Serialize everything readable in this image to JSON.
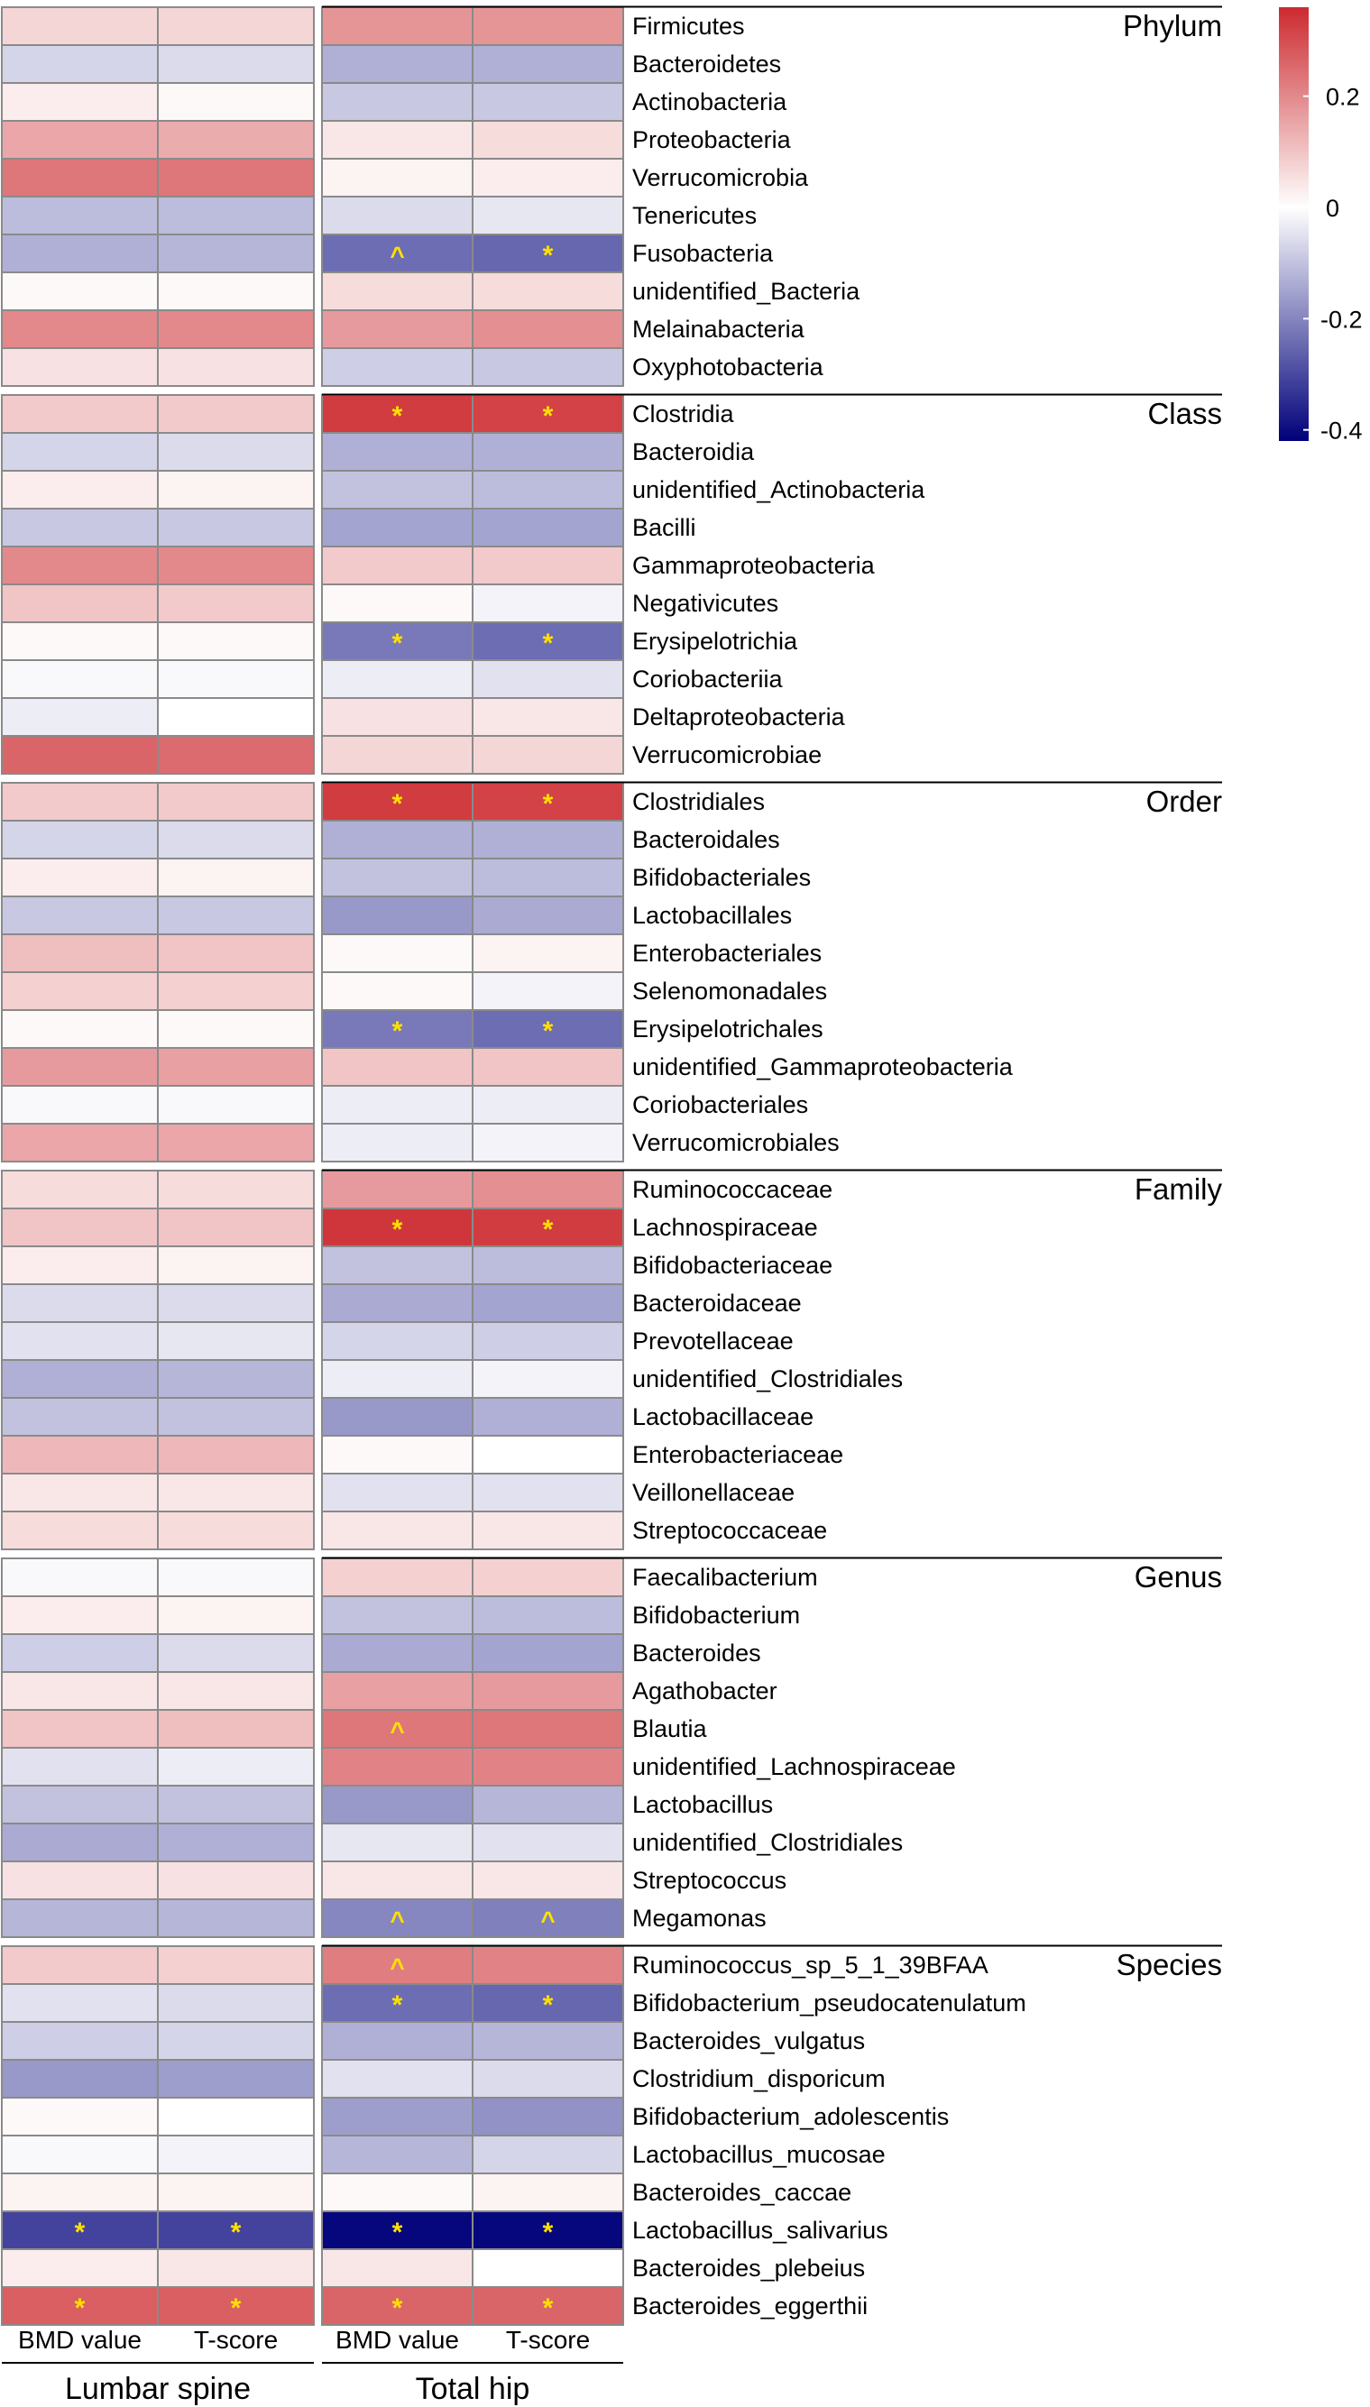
{
  "chart_data": {
    "type": "heatmap",
    "description_columns": [
      {
        "group": "Lumbar spine",
        "label": "BMD value"
      },
      {
        "group": "Lumbar spine",
        "label": "T-score"
      },
      {
        "group": "Total hip",
        "label": "BMD value"
      },
      {
        "group": "Total hip",
        "label": "T-score"
      }
    ],
    "column_labels": [
      "BMD value",
      "T-score",
      "BMD value",
      "T-score"
    ],
    "group_labels": [
      "Lumbar spine",
      "Total hip"
    ],
    "legend": {
      "ticks": [
        "0.2",
        "0",
        "-0.2",
        "-0.4"
      ],
      "tick_values": [
        0.2,
        0,
        -0.2,
        -0.4
      ],
      "range": [
        -0.42,
        0.36
      ],
      "low_color": "#00007a",
      "mid_color": "#ffffff",
      "high_color": "#cc2a2f"
    },
    "marker_color": "#ffe000",
    "sections": [
      {
        "level": "Phylum",
        "rows": [
          {
            "name": "Firmicutes",
            "values": [
              0.07,
              0.07,
              0.18,
              0.18
            ],
            "marks": [
              "",
              "",
              "",
              ""
            ]
          },
          {
            "name": "Bacteroidetes",
            "values": [
              -0.07,
              -0.06,
              -0.13,
              -0.13
            ],
            "marks": [
              "",
              "",
              "",
              ""
            ]
          },
          {
            "name": "Actinobacteria",
            "values": [
              0.03,
              0.01,
              -0.09,
              -0.09
            ],
            "marks": [
              "",
              "",
              "",
              ""
            ]
          },
          {
            "name": "Proteobacteria",
            "values": [
              0.15,
              0.14,
              0.04,
              0.06
            ],
            "marks": [
              "",
              "",
              "",
              ""
            ]
          },
          {
            "name": "Verrucomicrobia",
            "values": [
              0.23,
              0.23,
              0.02,
              0.03
            ],
            "marks": [
              "",
              "",
              "",
              ""
            ]
          },
          {
            "name": "Tenericutes",
            "values": [
              -0.11,
              -0.11,
              -0.06,
              -0.04
            ],
            "marks": [
              "",
              "",
              "",
              ""
            ]
          },
          {
            "name": "Fusobacteria",
            "values": [
              -0.13,
              -0.12,
              -0.24,
              -0.25
            ],
            "marks": [
              "",
              "",
              "^",
              "*"
            ]
          },
          {
            "name": "unidentified_Bacteria",
            "values": [
              0.01,
              0.01,
              0.06,
              0.06
            ],
            "marks": [
              "",
              "",
              "",
              ""
            ]
          },
          {
            "name": "Melainabacteria",
            "values": [
              0.2,
              0.2,
              0.17,
              0.19
            ],
            "marks": [
              "",
              "",
              "",
              ""
            ]
          },
          {
            "name": "Oxyphotobacteria",
            "values": [
              0.05,
              0.05,
              -0.08,
              -0.09
            ],
            "marks": [
              "",
              "",
              "",
              ""
            ]
          }
        ]
      },
      {
        "level": "Class",
        "rows": [
          {
            "name": "Clostridia",
            "values": [
              0.09,
              0.09,
              0.33,
              0.32
            ],
            "marks": [
              "",
              "",
              "*",
              "*"
            ]
          },
          {
            "name": "Bacteroidia",
            "values": [
              -0.07,
              -0.06,
              -0.13,
              -0.13
            ],
            "marks": [
              "",
              "",
              "",
              ""
            ]
          },
          {
            "name": "unidentified_Actinobacteria",
            "values": [
              0.03,
              0.02,
              -0.1,
              -0.11
            ],
            "marks": [
              "",
              "",
              "",
              ""
            ]
          },
          {
            "name": "Bacilli",
            "values": [
              -0.09,
              -0.09,
              -0.15,
              -0.15
            ],
            "marks": [
              "",
              "",
              "",
              ""
            ]
          },
          {
            "name": "Gammaproteobacteria",
            "values": [
              0.2,
              0.2,
              0.09,
              0.09
            ],
            "marks": [
              "",
              "",
              "",
              ""
            ]
          },
          {
            "name": "Negativicutes",
            "values": [
              0.1,
              0.09,
              0.01,
              -0.02
            ],
            "marks": [
              "",
              "",
              "",
              ""
            ]
          },
          {
            "name": "Erysipelotrichia",
            "values": [
              0.01,
              0.01,
              -0.22,
              -0.24
            ],
            "marks": [
              "",
              "",
              "*",
              "*"
            ]
          },
          {
            "name": "Coriobacteriia",
            "values": [
              -0.01,
              -0.01,
              -0.03,
              -0.05
            ],
            "marks": [
              "",
              "",
              "",
              ""
            ]
          },
          {
            "name": "Deltaproteobacteria",
            "values": [
              -0.03,
              0.0,
              0.05,
              0.04
            ],
            "marks": [
              "",
              "",
              "",
              ""
            ]
          },
          {
            "name": "Verrucomicrobiae",
            "values": [
              0.26,
              0.25,
              0.07,
              0.07
            ],
            "marks": [
              "",
              "",
              "",
              ""
            ]
          }
        ]
      },
      {
        "level": "Order",
        "rows": [
          {
            "name": "Clostridiales",
            "values": [
              0.09,
              0.09,
              0.33,
              0.32
            ],
            "marks": [
              "",
              "",
              "*",
              "*"
            ]
          },
          {
            "name": "Bacteroidales",
            "values": [
              -0.07,
              -0.06,
              -0.13,
              -0.13
            ],
            "marks": [
              "",
              "",
              "",
              ""
            ]
          },
          {
            "name": "Bifidobacteriales",
            "values": [
              0.03,
              0.02,
              -0.1,
              -0.11
            ],
            "marks": [
              "",
              "",
              "",
              ""
            ]
          },
          {
            "name": "Lactobacillales",
            "values": [
              -0.09,
              -0.09,
              -0.17,
              -0.14
            ],
            "marks": [
              "",
              "",
              "",
              ""
            ]
          },
          {
            "name": "Enterobacteriales",
            "values": [
              0.11,
              0.1,
              0.01,
              0.02
            ],
            "marks": [
              "",
              "",
              "",
              ""
            ]
          },
          {
            "name": "Selenomonadales",
            "values": [
              0.08,
              0.08,
              0.01,
              -0.02
            ],
            "marks": [
              "",
              "",
              "",
              ""
            ]
          },
          {
            "name": "Erysipelotrichales",
            "values": [
              0.01,
              0.01,
              -0.22,
              -0.24
            ],
            "marks": [
              "",
              "",
              "*",
              "*"
            ]
          },
          {
            "name": "unidentified_Gammaproteobacteria",
            "values": [
              0.17,
              0.16,
              0.1,
              0.1
            ],
            "marks": [
              "",
              "",
              "",
              ""
            ]
          },
          {
            "name": "Coriobacteriales",
            "values": [
              -0.01,
              -0.01,
              -0.03,
              -0.03
            ],
            "marks": [
              "",
              "",
              "",
              ""
            ]
          },
          {
            "name": "Verrucomicrobiales",
            "values": [
              0.15,
              0.15,
              -0.03,
              -0.02
            ],
            "marks": [
              "",
              "",
              "",
              ""
            ]
          }
        ]
      },
      {
        "level": "Family",
        "rows": [
          {
            "name": "Ruminococcaceae",
            "values": [
              0.06,
              0.06,
              0.17,
              0.19
            ],
            "marks": [
              "",
              "",
              "",
              ""
            ]
          },
          {
            "name": "Lachnospiraceae",
            "values": [
              0.1,
              0.1,
              0.34,
              0.33
            ],
            "marks": [
              "",
              "",
              "*",
              "*"
            ]
          },
          {
            "name": "Bifidobacteriaceae",
            "values": [
              0.03,
              0.02,
              -0.1,
              -0.11
            ],
            "marks": [
              "",
              "",
              "",
              ""
            ]
          },
          {
            "name": "Bacteroidaceae",
            "values": [
              -0.06,
              -0.06,
              -0.14,
              -0.15
            ],
            "marks": [
              "",
              "",
              "",
              ""
            ]
          },
          {
            "name": "Prevotellaceae",
            "values": [
              -0.05,
              -0.04,
              -0.07,
              -0.08
            ],
            "marks": [
              "",
              "",
              "",
              ""
            ]
          },
          {
            "name": "unidentified_Clostridiales",
            "values": [
              -0.13,
              -0.12,
              -0.03,
              -0.02
            ],
            "marks": [
              "",
              "",
              "",
              ""
            ]
          },
          {
            "name": "Lactobacillaceae",
            "values": [
              -0.1,
              -0.1,
              -0.17,
              -0.13
            ],
            "marks": [
              "",
              "",
              "",
              ""
            ]
          },
          {
            "name": "Enterobacteriaceae",
            "values": [
              0.12,
              0.12,
              0.01,
              0.0
            ],
            "marks": [
              "",
              "",
              "",
              ""
            ]
          },
          {
            "name": "Veillonellaceae",
            "values": [
              0.04,
              0.04,
              -0.05,
              -0.05
            ],
            "marks": [
              "",
              "",
              "",
              ""
            ]
          },
          {
            "name": "Streptococcaceae",
            "values": [
              0.06,
              0.06,
              0.04,
              0.04
            ],
            "marks": [
              "",
              "",
              "",
              ""
            ]
          }
        ]
      },
      {
        "level": "Genus",
        "rows": [
          {
            "name": "Faecalibacterium",
            "values": [
              -0.01,
              -0.01,
              0.08,
              0.08
            ],
            "marks": [
              "",
              "",
              "",
              ""
            ]
          },
          {
            "name": "Bifidobacterium",
            "values": [
              0.03,
              0.02,
              -0.1,
              -0.11
            ],
            "marks": [
              "",
              "",
              "",
              ""
            ]
          },
          {
            "name": "Bacteroides",
            "values": [
              -0.08,
              -0.06,
              -0.14,
              -0.15
            ],
            "marks": [
              "",
              "",
              "",
              ""
            ]
          },
          {
            "name": "Agathobacter",
            "values": [
              0.04,
              0.04,
              0.16,
              0.17
            ],
            "marks": [
              "",
              "",
              "",
              ""
            ]
          },
          {
            "name": "Blautia",
            "values": [
              0.1,
              0.11,
              0.23,
              0.23
            ],
            "marks": [
              "",
              "",
              "^",
              ""
            ]
          },
          {
            "name": "unidentified_Lachnospiraceae",
            "values": [
              -0.05,
              -0.03,
              0.21,
              0.21
            ],
            "marks": [
              "",
              "",
              "",
              ""
            ]
          },
          {
            "name": "Lactobacillus",
            "values": [
              -0.1,
              -0.1,
              -0.17,
              -0.12
            ],
            "marks": [
              "",
              "",
              "",
              ""
            ]
          },
          {
            "name": "unidentified_Clostridiales",
            "values": [
              -0.14,
              -0.13,
              -0.04,
              -0.05
            ],
            "marks": [
              "",
              "",
              "",
              ""
            ]
          },
          {
            "name": "Streptococcus",
            "values": [
              0.05,
              0.05,
              0.04,
              0.04
            ],
            "marks": [
              "",
              "",
              "",
              ""
            ]
          },
          {
            "name": "Megamonas",
            "values": [
              -0.12,
              -0.12,
              -0.2,
              -0.21
            ],
            "marks": [
              "",
              "",
              "^",
              "^"
            ]
          }
        ]
      },
      {
        "level": "Species",
        "rows": [
          {
            "name": "Ruminococcus_sp_5_1_39BFAA",
            "values": [
              0.09,
              0.08,
              0.22,
              0.21
            ],
            "marks": [
              "",
              "",
              "^",
              ""
            ]
          },
          {
            "name": "Bifidobacterium_pseudocatenulatum",
            "values": [
              -0.05,
              -0.06,
              -0.24,
              -0.25
            ],
            "marks": [
              "",
              "",
              "*",
              "*"
            ]
          },
          {
            "name": "Bacteroides_vulgatus",
            "values": [
              -0.08,
              -0.07,
              -0.13,
              -0.12
            ],
            "marks": [
              "",
              "",
              "",
              ""
            ]
          },
          {
            "name": "Clostridium_disporicum",
            "values": [
              -0.17,
              -0.16,
              -0.05,
              -0.06
            ],
            "marks": [
              "",
              "",
              "",
              ""
            ]
          },
          {
            "name": "Bifidobacterium_adolescentis",
            "values": [
              0.01,
              0.0,
              -0.16,
              -0.18
            ],
            "marks": [
              "",
              "",
              "",
              ""
            ]
          },
          {
            "name": "Lactobacillus_mucosae",
            "values": [
              -0.01,
              -0.02,
              -0.12,
              -0.07
            ],
            "marks": [
              "",
              "",
              "",
              ""
            ]
          },
          {
            "name": "Bacteroides_caccae",
            "values": [
              0.02,
              0.02,
              0.01,
              0.02
            ],
            "marks": [
              "",
              "",
              "",
              ""
            ]
          },
          {
            "name": "Lactobacillus_salivarius",
            "values": [
              -0.31,
              -0.31,
              -0.41,
              -0.41
            ],
            "marks": [
              "*",
              "*",
              "*",
              "*"
            ]
          },
          {
            "name": "Bacteroides_plebeius",
            "values": [
              0.03,
              0.04,
              0.04,
              0.0
            ],
            "marks": [
              "",
              "",
              "",
              ""
            ]
          },
          {
            "name": "Bacteroides_eggerthii",
            "values": [
              0.27,
              0.27,
              0.26,
              0.26
            ],
            "marks": [
              "*",
              "*",
              "*",
              "*"
            ]
          }
        ]
      }
    ]
  }
}
